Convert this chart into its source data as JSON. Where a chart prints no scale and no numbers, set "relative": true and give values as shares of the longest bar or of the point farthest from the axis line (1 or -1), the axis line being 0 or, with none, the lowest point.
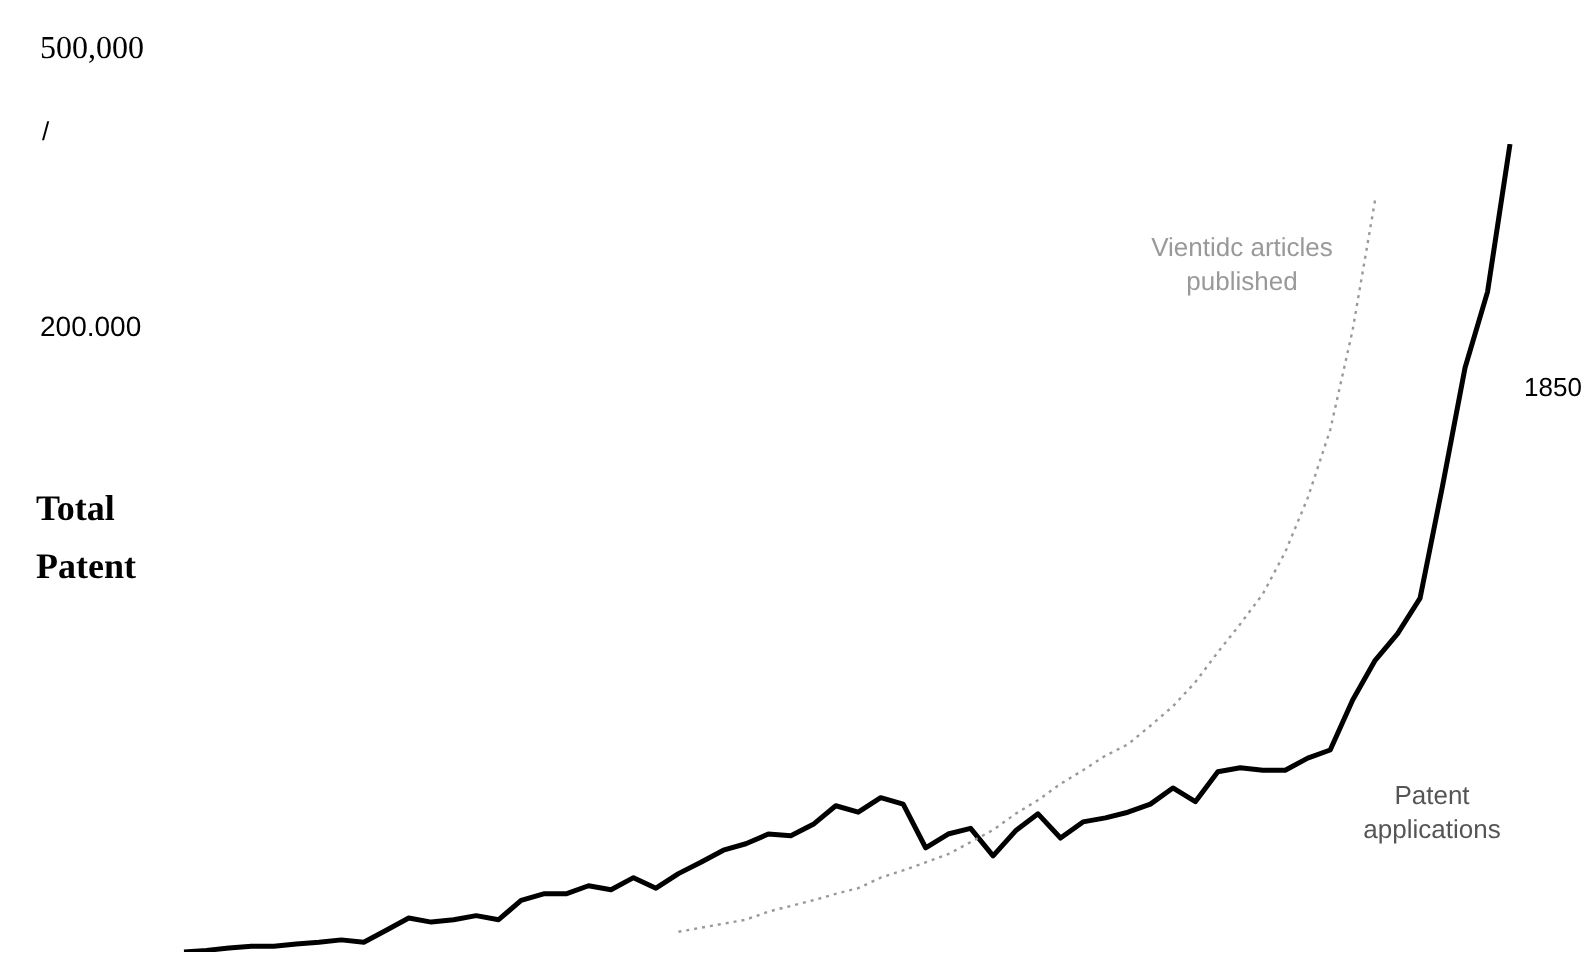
{
  "chart_data": {
    "type": "line",
    "relative": true,
    "ylabel": "Total Patent",
    "tick_labels": false,
    "marker": "none",
    "categories": [
      null,
      null,
      null,
      null,
      null,
      null,
      null,
      null,
      null,
      null,
      null,
      null,
      null,
      null,
      null,
      null,
      null,
      null,
      null,
      null,
      null,
      null,
      null,
      null,
      null,
      null,
      null,
      null,
      null,
      null,
      null,
      null,
      null,
      null,
      null,
      null,
      null,
      null,
      null,
      null,
      null,
      null,
      null,
      null,
      null,
      null,
      null,
      null,
      null,
      null,
      null,
      null,
      null,
      null,
      null,
      null,
      null,
      null,
      null,
      null
    ],
    "series": [
      {
        "name": "Patent applications",
        "color": "#000000",
        "line_style": "solid",
        "values": [
          0,
          0.002,
          0.005,
          0.007,
          0.007,
          0.01,
          0.012,
          0.015,
          0.012,
          0.027,
          0.042,
          0.037,
          0.04,
          0.045,
          0.04,
          0.064,
          0.072,
          0.072,
          0.082,
          0.077,
          0.092,
          0.079,
          0.097,
          0.111,
          0.126,
          0.134,
          0.146,
          0.144,
          0.158,
          0.181,
          0.173,
          0.191,
          0.183,
          0.129,
          0.146,
          0.153,
          0.119,
          0.15,
          0.171,
          0.141,
          0.161,
          0.166,
          0.173,
          0.183,
          0.203,
          0.186,
          0.223,
          0.228,
          0.225,
          0.225,
          0.24,
          0.25,
          0.312,
          0.361,
          0.394,
          0.438,
          0.577,
          0.723,
          0.817,
          1
        ]
      },
      {
        "name": "Vientidc articles published",
        "color": "#999999",
        "line_style": "dotted",
        "values": [
          null,
          null,
          null,
          null,
          null,
          null,
          null,
          null,
          null,
          null,
          null,
          null,
          null,
          null,
          null,
          null,
          null,
          null,
          null,
          null,
          null,
          null,
          0.025,
          0.03,
          0.035,
          0.04,
          0.05,
          0.057,
          0.064,
          0.072,
          0.079,
          0.092,
          0.101,
          0.111,
          0.121,
          0.136,
          0.151,
          0.171,
          0.188,
          0.208,
          0.225,
          0.243,
          0.257,
          0.28,
          0.304,
          0.334,
          0.371,
          0.406,
          0.443,
          0.495,
          0.562,
          0.646,
          0.77,
          0.931,
          null,
          null,
          null,
          null,
          null,
          null
        ]
      }
    ],
    "annotations": [
      "500,000",
      "/",
      "200.000",
      "1850"
    ]
  }
}
